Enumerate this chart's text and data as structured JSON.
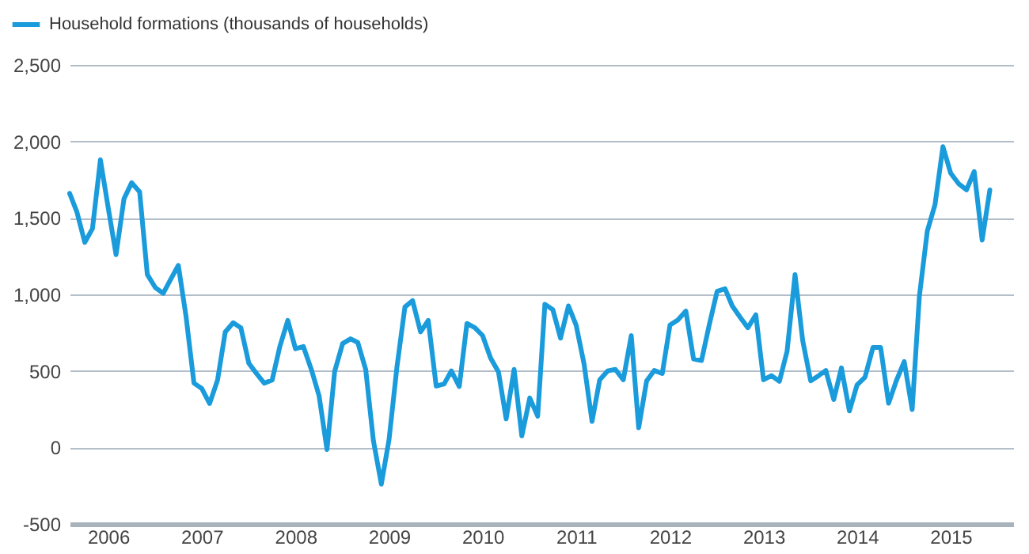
{
  "chart_data": {
    "type": "line",
    "legend": "top left",
    "grid": "y",
    "ylim": [
      -500,
      2500
    ],
    "yticks": [
      {
        "value": -500,
        "label": "-500"
      },
      0,
      500,
      {
        "value": 1000,
        "label": "1,000"
      },
      {
        "value": 1500,
        "label": "1,500"
      },
      {
        "value": 2000,
        "label": "2,000"
      },
      {
        "value": 2500,
        "label": "2,500"
      }
    ],
    "xlim": [
      "2006-02",
      "2016-03"
    ],
    "xticks": [
      {
        "value": "2006-07",
        "label": "2006"
      },
      {
        "value": "2007-07",
        "label": "2007"
      },
      {
        "value": "2008-07",
        "label": "2008"
      },
      {
        "value": "2009-07",
        "label": "2009"
      },
      {
        "value": "2010-07",
        "label": "2010"
      },
      {
        "value": "2011-07",
        "label": "2011"
      },
      {
        "value": "2012-07",
        "label": "2012"
      },
      {
        "value": "2013-07",
        "label": "2013"
      },
      {
        "value": "2014-07",
        "label": "2014"
      },
      {
        "value": "2015-07",
        "label": "2015"
      }
    ],
    "x": [
      "2006-02",
      "2006-03",
      "2006-04",
      "2006-05",
      "2006-06",
      "2006-07",
      "2006-08",
      "2006-09",
      "2006-10",
      "2006-11",
      "2006-12",
      "2007-01",
      "2007-02",
      "2007-03",
      "2007-04",
      "2007-05",
      "2007-06",
      "2007-07",
      "2007-08",
      "2007-09",
      "2007-10",
      "2007-11",
      "2007-12",
      "2008-01",
      "2008-02",
      "2008-03",
      "2008-04",
      "2008-05",
      "2008-06",
      "2008-07",
      "2008-08",
      "2008-09",
      "2008-10",
      "2008-11",
      "2008-12",
      "2009-01",
      "2009-02",
      "2009-03",
      "2009-04",
      "2009-05",
      "2009-06",
      "2009-07",
      "2009-08",
      "2009-09",
      "2009-10",
      "2009-11",
      "2009-12",
      "2010-01",
      "2010-02",
      "2010-03",
      "2010-04",
      "2010-05",
      "2010-06",
      "2010-07",
      "2010-08",
      "2010-09",
      "2010-10",
      "2010-11",
      "2010-12",
      "2011-01",
      "2011-02",
      "2011-03",
      "2011-04",
      "2011-05",
      "2011-06",
      "2011-07",
      "2011-08",
      "2011-09",
      "2011-10",
      "2011-11",
      "2011-12",
      "2012-01",
      "2012-02",
      "2012-03",
      "2012-04",
      "2012-05",
      "2012-06",
      "2012-07",
      "2012-08",
      "2012-09",
      "2012-10",
      "2012-11",
      "2012-12",
      "2013-01",
      "2013-02",
      "2013-03",
      "2013-04",
      "2013-05",
      "2013-06",
      "2013-07",
      "2013-08",
      "2013-09",
      "2013-10",
      "2013-11",
      "2013-12",
      "2014-01",
      "2014-02",
      "2014-03",
      "2014-04",
      "2014-05",
      "2014-06",
      "2014-07",
      "2014-08",
      "2014-09",
      "2014-10",
      "2014-11",
      "2014-12",
      "2015-01",
      "2015-02",
      "2015-03",
      "2015-04",
      "2015-05",
      "2015-06",
      "2015-07",
      "2015-08",
      "2015-09",
      "2015-10",
      "2015-11",
      "2015-12"
    ],
    "series": [
      {
        "name": "Household formations (thousands of households)",
        "color": "#1a9bdb",
        "values": [
          1660,
          1540,
          1340,
          1430,
          1880,
          1570,
          1260,
          1625,
          1730,
          1670,
          1130,
          1045,
          1007,
          1095,
          1190,
          857,
          420,
          386,
          287,
          440,
          754,
          815,
          782,
          550,
          481,
          420,
          440,
          659,
          830,
          645,
          659,
          509,
          338,
          -14,
          498,
          679,
          710,
          686,
          509,
          44,
          -240,
          51,
          527,
          918,
          959,
          755,
          830,
          401,
          415,
          500,
          398,
          810,
          782,
          731,
          585,
          493,
          187,
          510,
          75,
          323,
          204,
          935,
          901,
          714,
          925,
          799,
          544,
          170,
          442,
          500,
          510,
          442,
          731,
          129,
          435,
          503,
          483,
          799,
          833,
          891,
          578,
          568,
          799,
          1020,
          1037,
          925,
          850,
          782,
          867,
          442,
          469,
          432,
          629,
          1129,
          697,
          435,
          469,
          503,
          313,
          520,
          238,
          408,
          459,
          653,
          653,
          289,
          435,
          561,
          248,
          986,
          1414,
          1586,
          1966,
          1793,
          1724,
          1683,
          1803,
          1355,
          1683
        ]
      }
    ]
  }
}
